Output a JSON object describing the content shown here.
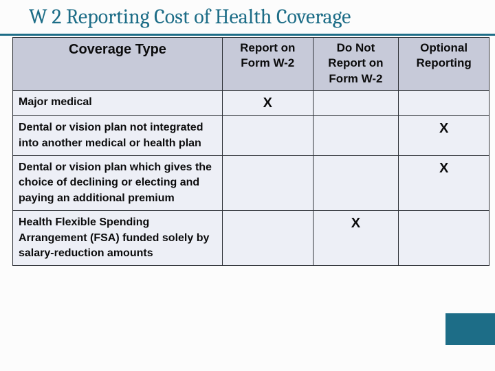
{
  "title": "W 2 Reporting Cost of Health Coverage",
  "mark": "X",
  "colors": {
    "accent": "#1d6d87",
    "header_bg": "#c7cad9",
    "cell_bg": "#edeff6",
    "border": "#2f3238",
    "text": "#0b0b0c"
  },
  "table": {
    "columns": [
      "Coverage Type",
      "Report on Form W-2",
      "Do Not Report on Form W-2",
      "Optional Reporting"
    ],
    "column_widths_pct": [
      44,
      19,
      18,
      19
    ],
    "rows": [
      {
        "label": "Major medical",
        "marks": [
          "X",
          "",
          ""
        ]
      },
      {
        "label": "Dental or vision plan not integrated into another medical or health plan",
        "marks": [
          "",
          "",
          "X"
        ]
      },
      {
        "label": "Dental or vision plan which gives the choice of declining or electing and paying an additional premium",
        "marks": [
          "",
          "",
          "X"
        ]
      },
      {
        "label": "Health Flexible Spending Arrangement (FSA) funded solely by salary-reduction amounts",
        "marks": [
          "",
          "X",
          ""
        ]
      }
    ]
  },
  "typography": {
    "title_font": "Cambria, Georgia, serif",
    "title_size_pt": 23,
    "header_size_pt": 13,
    "cell_size_pt": 12,
    "mark_size_pt": 15
  }
}
